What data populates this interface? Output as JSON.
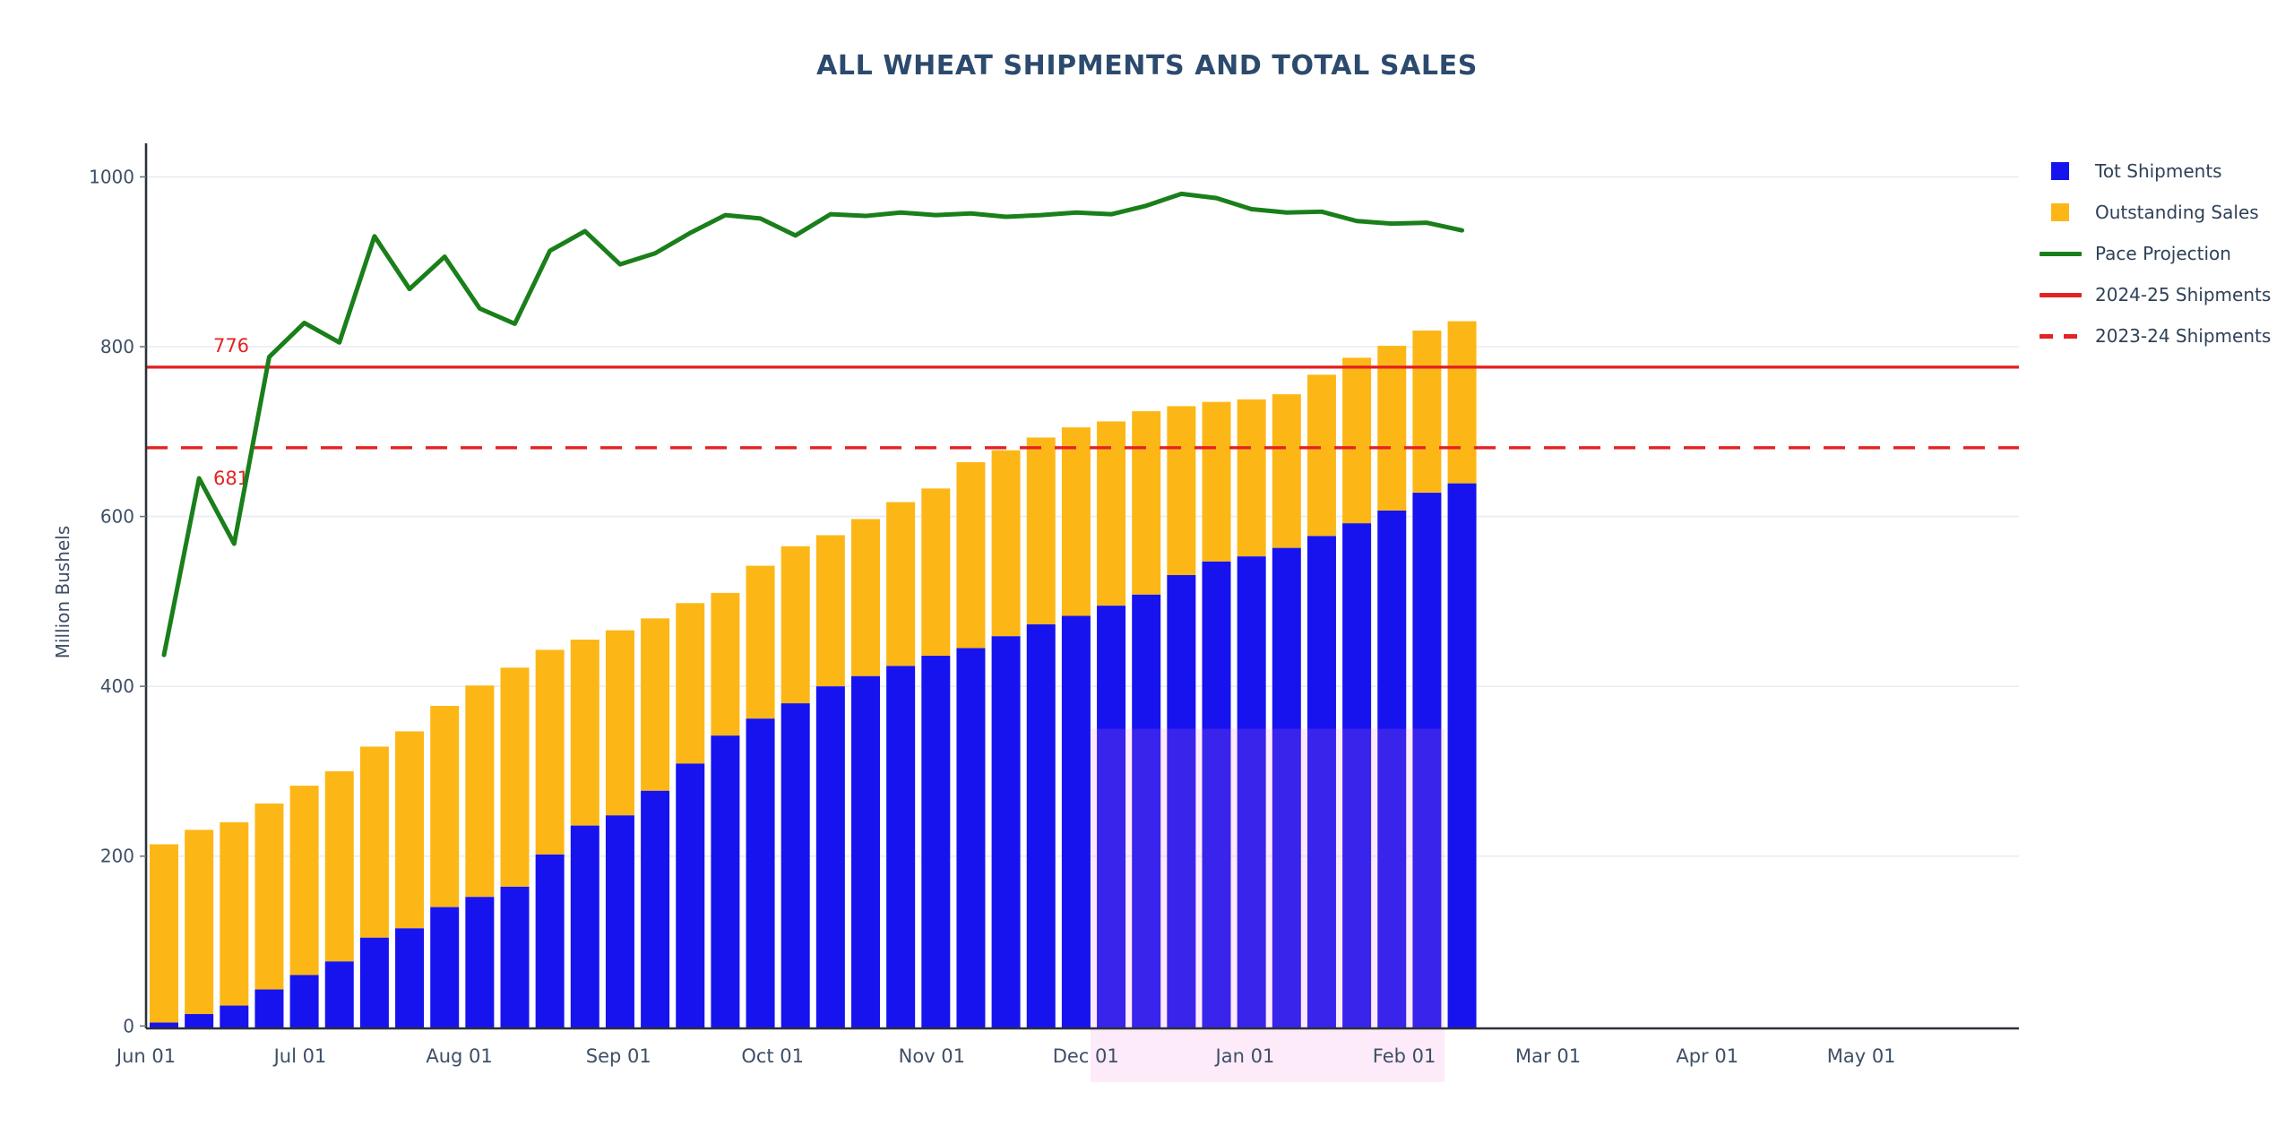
{
  "chart_data": {
    "type": "bar",
    "subtype": "stacked-bars-with-line",
    "title": "ALL WHEAT SHIPMENTS AND TOTAL SALES",
    "ylabel": "Million Bushels",
    "xlabel": "",
    "ylim": [
      0,
      1040
    ],
    "yticks": [
      0,
      200,
      400,
      600,
      800,
      1000
    ],
    "grid": "horizontal-only",
    "legend_position": "right",
    "categories": [
      "Jun 01",
      "Jun 08",
      "Jun 15",
      "Jun 22",
      "Jun 29",
      "Jul 06",
      "Jul 13",
      "Jul 20",
      "Jul 27",
      "Aug 03",
      "Aug 10",
      "Aug 17",
      "Aug 24",
      "Aug 31",
      "Sep 07",
      "Sep 14",
      "Sep 21",
      "Sep 28",
      "Oct 05",
      "Oct 12",
      "Oct 19",
      "Oct 26",
      "Nov 02",
      "Nov 09",
      "Nov 16",
      "Nov 23",
      "Nov 30",
      "Dec 07",
      "Dec 14",
      "Dec 21",
      "Dec 28",
      "Jan 04",
      "Jan 11",
      "Jan 18",
      "Jan 25",
      "Feb 01",
      "Feb 08",
      "Feb 15"
    ],
    "series": [
      {
        "name": "Tot Shipments",
        "type": "bar",
        "stack": "sales",
        "color": "#1613ef",
        "values": [
          4,
          14,
          24,
          43,
          60,
          76,
          104,
          115,
          140,
          152,
          164,
          202,
          236,
          248,
          277,
          309,
          342,
          362,
          380,
          400,
          412,
          424,
          436,
          445,
          459,
          473,
          483,
          495,
          508,
          531,
          547,
          553,
          563,
          577,
          592,
          607,
          628,
          639
        ]
      },
      {
        "name": "Outstanding Sales",
        "type": "bar",
        "stack": "sales",
        "color": "#fcb717",
        "values": [
          210,
          217,
          216,
          219,
          223,
          224,
          225,
          232,
          237,
          249,
          258,
          241,
          219,
          218,
          203,
          189,
          168,
          180,
          185,
          178,
          185,
          193,
          197,
          219,
          219,
          220,
          222,
          217,
          216,
          199,
          188,
          185,
          181,
          190,
          195,
          194,
          191,
          191
        ]
      },
      {
        "name": "Pace Projection",
        "type": "line",
        "color": "#1a7f1a",
        "values": [
          437,
          645,
          568,
          788,
          828,
          805,
          930,
          868,
          906,
          845,
          827,
          913,
          936,
          897,
          910,
          934,
          955,
          951,
          931,
          956,
          954,
          958,
          955,
          957,
          953,
          955,
          958,
          956,
          966,
          980,
          975,
          962,
          958,
          959,
          948,
          945,
          946,
          937
        ]
      }
    ],
    "stacked_totals_total_sales": [
      214,
      231,
      240,
      262,
      283,
      300,
      329,
      347,
      377,
      401,
      422,
      443,
      455,
      466,
      480,
      498,
      510,
      542,
      565,
      578,
      597,
      617,
      633,
      664,
      678,
      693,
      705,
      712,
      724,
      730,
      735,
      738,
      744,
      767,
      787,
      801,
      819,
      830
    ],
    "reference_lines": [
      {
        "name": "2024-25 Shipments",
        "value": 776,
        "label": "776",
        "style": "solid",
        "color": "#e42222"
      },
      {
        "name": "2023-24 Shipments",
        "value": 681,
        "label": "681",
        "style": "dashed",
        "color": "#e42222"
      }
    ],
    "x_axis_month_ticks": [
      "Jun 01",
      "Jul 01",
      "Aug 01",
      "Sep 01",
      "Oct 01",
      "Nov 01",
      "Dec 01",
      "Jan 01",
      "Feb 01",
      "Mar 01",
      "Apr 01",
      "May 01"
    ],
    "x_axis_month_day_offsets": [
      0,
      30,
      61,
      92,
      122,
      153,
      183,
      214,
      245,
      273,
      304,
      334
    ],
    "highlight_band": {
      "start": "Dec 02",
      "end": "Feb 09",
      "top_value": 350,
      "color": "rgba(240,130,225,0.16)"
    }
  },
  "legend": {
    "items": [
      {
        "label": "Tot Shipments",
        "swatch": "square",
        "color": "#1613ef"
      },
      {
        "label": "Outstanding Sales",
        "swatch": "square",
        "color": "#fcb717"
      },
      {
        "label": "Pace Projection",
        "swatch": "line",
        "color": "#1a7f1a"
      },
      {
        "label": "2024-25 Shipments",
        "swatch": "line",
        "color": "#e42222"
      },
      {
        "label": "2023-24 Shipments",
        "swatch": "dashed",
        "color": "#e42222"
      }
    ]
  }
}
